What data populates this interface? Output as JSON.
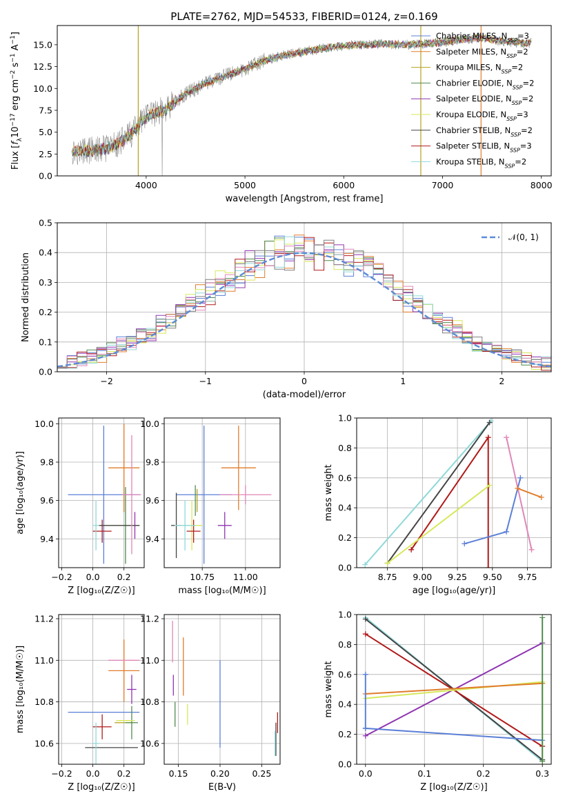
{
  "colors": {
    "cm": "#5a7fd6",
    "sm": "#e07b2a",
    "km": "#b5a11f",
    "ce": "#4f8a4f",
    "se": "#8e34b0",
    "ke": "#d6e85a",
    "cs": "#444444",
    "ss": "#b01818",
    "ks": "#8fd8d8",
    "pink": "#e086b8",
    "gray": "#7f7f7f",
    "normal": "#5b8bd6"
  },
  "chart_data": [
    {
      "id": "spectrum",
      "type": "line",
      "title": "PLATE=2762, MJD=54533, FIBERID=0124, z=0.169",
      "xlabel": "wavelength [Angstrom, rest frame]",
      "ylabel_parts": [
        "Flux [",
        "f",
        "λ",
        "10",
        "−17",
        " erg cm",
        "−2",
        " s",
        "−1",
        " A",
        "−1",
        "]"
      ],
      "xlim": [
        3100,
        8100
      ],
      "ylim": [
        0,
        17.2
      ],
      "xticks": [
        4000,
        5000,
        6000,
        7000,
        8000
      ],
      "yticks": [
        0.0,
        2.5,
        5.0,
        7.5,
        10.0,
        12.5,
        15.0
      ],
      "ytick_labels": [
        "0.0",
        "2.5",
        "5.0",
        "7.5",
        "10.0",
        "12.5",
        "15.0"
      ],
      "grid": false,
      "legend_position": "top-right",
      "continuum": {
        "x": [
          3250,
          3450,
          3600,
          3750,
          3850,
          3950,
          4050,
          4200,
          4400,
          4600,
          4800,
          5000,
          5200,
          5400,
          5600,
          5800,
          6000,
          6200,
          6400,
          6600,
          6800,
          7000,
          7200,
          7400,
          7600,
          7800
        ],
        "y": [
          2.8,
          2.9,
          3.1,
          4.0,
          4.8,
          6.2,
          7.0,
          7.6,
          9.4,
          10.6,
          11.4,
          12.2,
          13.2,
          13.8,
          14.2,
          14.6,
          14.9,
          15.0,
          15.1,
          15.0,
          15.1,
          15.3,
          15.6,
          15.8,
          15.4,
          15.2
        ]
      },
      "legend": [
        {
          "base": "Chabrier MILES, N",
          "sub": "SSP",
          "tail": "=3",
          "color": "cm"
        },
        {
          "base": "Salpeter MILES, N",
          "sub": "SSP",
          "tail": "=2",
          "color": "sm"
        },
        {
          "base": "Kroupa MILES, N",
          "sub": "SSP",
          "tail": "=2",
          "color": "km"
        },
        {
          "base": "Chabrier ELODIE, N",
          "sub": "SSP",
          "tail": "=2",
          "color": "ce"
        },
        {
          "base": "Salpeter ELODIE, N",
          "sub": "SSP",
          "tail": "=2",
          "color": "se"
        },
        {
          "base": "Kroupa ELODIE, N",
          "sub": "SSP",
          "tail": "=3",
          "color": "ke"
        },
        {
          "base": "Chabrier STELIB, N",
          "sub": "SSP",
          "tail": "=2",
          "color": "cs"
        },
        {
          "base": "Salpeter STELIB, N",
          "sub": "SSP",
          "tail": "=3",
          "color": "ss"
        },
        {
          "base": "Kroupa STELIB, N",
          "sub": "SSP",
          "tail": "=2",
          "color": "ks"
        }
      ],
      "vlines": [
        {
          "x": 3920,
          "color": "km"
        },
        {
          "x": 6780,
          "color": "km"
        },
        {
          "x": 7390,
          "color": "sm"
        }
      ]
    },
    {
      "id": "residuals",
      "type": "area",
      "xlabel": "(data-model)/error",
      "ylabel": "Normed distribution",
      "xlim": [
        -2.5,
        2.5
      ],
      "ylim": [
        0,
        0.5
      ],
      "xticks": [
        -2,
        -1,
        0,
        1,
        2
      ],
      "xtick_labels": [
        "−2",
        "−1",
        "0",
        "1",
        "2"
      ],
      "yticks": [
        0.0,
        0.1,
        0.2,
        0.3,
        0.4,
        0.5
      ],
      "ytick_labels": [
        "0.0",
        "0.1",
        "0.2",
        "0.3",
        "0.4",
        "0.5"
      ],
      "grid": true,
      "legend_position": "top-right",
      "normal_legend": "𝒩(0, 1)",
      "bin_width": 0.1,
      "n_bins": 50
    },
    {
      "id": "age_vs_Z",
      "type": "scatter",
      "xlabel": "Z [log₁₀(Z/Z☉)]",
      "ylabel": "age  [log₁₀(age/yr)]",
      "xlim": [
        -0.22,
        0.33
      ],
      "ylim": [
        9.25,
        10.03
      ],
      "xticks": [
        -0.2,
        0.0,
        0.2
      ],
      "xtick_labels": [
        "−0.2",
        "0.0",
        "0.2"
      ],
      "yticks": [
        9.4,
        9.6,
        9.8,
        10.0
      ],
      "ytick_labels": [
        "9.4",
        "9.6",
        "9.8",
        "10.0"
      ],
      "grid": true,
      "points": [
        {
          "x": 0.07,
          "xerr": 0.23,
          "y": 9.63,
          "yerr": 0.36,
          "color": "cm"
        },
        {
          "x": 0.2,
          "xerr": 0.1,
          "y": 9.77,
          "yerr": 0.23,
          "color": "sm"
        },
        {
          "x": 0.2,
          "xerr": 0.0,
          "y": 9.47,
          "yerr": 0.0,
          "color": "km"
        },
        {
          "x": 0.21,
          "xerr": 0.09,
          "y": 9.47,
          "yerr": 0.2,
          "color": "ce"
        },
        {
          "x": 0.27,
          "xerr": 0.03,
          "y": 9.47,
          "yerr": 0.07,
          "color": "se"
        },
        {
          "x": 0.18,
          "xerr": 0.12,
          "y": 9.47,
          "yerr": 0.0,
          "color": "ke"
        },
        {
          "x": 0.17,
          "xerr": 0.13,
          "y": 9.47,
          "yerr": 0.0,
          "color": "cs"
        },
        {
          "x": 0.06,
          "xerr": 0.06,
          "y": 9.44,
          "yerr": 0.06,
          "color": "ss"
        },
        {
          "x": 0.02,
          "xerr": 0.02,
          "y": 9.47,
          "yerr": 0.13,
          "color": "ks"
        },
        {
          "x": 0.25,
          "xerr": 0.06,
          "y": 9.63,
          "yerr": 0.31,
          "color": "pink"
        }
      ]
    },
    {
      "id": "age_vs_mass",
      "type": "scatter",
      "xlabel": "mass [log₁₀(M/M☉)]",
      "ylabel": "",
      "xlim": [
        10.53,
        11.2
      ],
      "ylim": [
        9.25,
        10.03
      ],
      "xticks": [
        10.5,
        10.75,
        11.0
      ],
      "xtick_labels": [
        "10.50",
        "10.75",
        "11.00"
      ],
      "yticks": [
        9.4,
        9.6,
        9.8,
        10.0
      ],
      "ytick_labels": [
        "9.4",
        "9.6",
        "9.8",
        "10.0"
      ],
      "grid": true,
      "points": [
        {
          "x": 10.76,
          "xerr": 0.16,
          "y": 9.63,
          "yerr": 0.36,
          "color": "cm"
        },
        {
          "x": 10.96,
          "xerr": 0.1,
          "y": 9.77,
          "yerr": 0.22,
          "color": "sm"
        },
        {
          "x": 10.72,
          "xerr": 0.0,
          "y": 9.6,
          "yerr": 0.06,
          "color": "km"
        },
        {
          "x": 10.71,
          "xerr": 0.0,
          "y": 9.6,
          "yerr": 0.08,
          "color": "ce"
        },
        {
          "x": 10.88,
          "xerr": 0.04,
          "y": 9.47,
          "yerr": 0.07,
          "color": "se"
        },
        {
          "x": 10.69,
          "xerr": 0.06,
          "y": 9.47,
          "yerr": 0.13,
          "color": "ke"
        },
        {
          "x": 10.6,
          "xerr": 0.03,
          "y": 9.47,
          "yerr": 0.17,
          "color": "cs"
        },
        {
          "x": 10.7,
          "xerr": 0.04,
          "y": 9.44,
          "yerr": 0.06,
          "color": "ss"
        },
        {
          "x": 10.65,
          "xerr": 0.06,
          "y": 9.47,
          "yerr": 0.13,
          "color": "ks"
        },
        {
          "x": 11.0,
          "xerr": 0.15,
          "y": 9.63,
          "yerr": 0.05,
          "color": "pink"
        }
      ]
    },
    {
      "id": "weight_vs_age",
      "type": "line",
      "xlabel": "age  [log₁₀(age/yr)]",
      "ylabel": "mass weight",
      "xlim": [
        8.53,
        9.92
      ],
      "ylim": [
        0,
        1
      ],
      "xticks": [
        8.75,
        9.0,
        9.25,
        9.5,
        9.75
      ],
      "xtick_labels": [
        "8.75",
        "9.00",
        "9.25",
        "9.50",
        "9.75"
      ],
      "yticks": [
        0.0,
        0.2,
        0.4,
        0.6,
        0.8,
        1.0
      ],
      "ytick_labels": [
        "0.0",
        "0.2",
        "0.4",
        "0.6",
        "0.8",
        "1.0"
      ],
      "grid": true,
      "series": [
        {
          "color": "ks",
          "x": [
            8.59,
            9.49
          ],
          "y": [
            0.02,
            0.98
          ]
        },
        {
          "color": "cs",
          "x": [
            8.75,
            9.48
          ],
          "y": [
            0.03,
            0.97
          ]
        },
        {
          "color": "ss",
          "x": [
            8.92,
            9.47,
            9.47
          ],
          "y": [
            0.12,
            0.87,
            0.0
          ]
        },
        {
          "color": "ke",
          "x": [
            8.75,
            9.48
          ],
          "y": [
            0.03,
            0.55
          ]
        },
        {
          "color": "cm",
          "x": [
            9.3,
            9.6,
            9.7
          ],
          "y": [
            0.16,
            0.24,
            0.6
          ]
        },
        {
          "color": "pink",
          "x": [
            9.6,
            9.78
          ],
          "y": [
            0.87,
            0.12
          ]
        },
        {
          "color": "sm",
          "x": [
            9.68,
            9.85
          ],
          "y": [
            0.53,
            0.47
          ]
        }
      ]
    },
    {
      "id": "mass_vs_Z",
      "type": "scatter",
      "xlabel": "Z [log₁₀(Z/Z☉)]",
      "ylabel": "mass [log₁₀(M/M☉)]",
      "xlim": [
        -0.22,
        0.33
      ],
      "ylim": [
        10.5,
        11.22
      ],
      "xticks": [
        -0.2,
        0.0,
        0.2
      ],
      "xtick_labels": [
        "−0.2",
        "0.0",
        "0.2"
      ],
      "yticks": [
        10.6,
        10.8,
        11.0,
        11.2
      ],
      "ytick_labels": [
        "10.6",
        "10.8",
        "11.0",
        "11.2"
      ],
      "grid": true,
      "points": [
        {
          "x": 0.07,
          "xerr": 0.23,
          "y": 10.75,
          "yerr": 0.0,
          "color": "cm"
        },
        {
          "x": 0.2,
          "xerr": 0.1,
          "y": 10.95,
          "yerr": 0.15,
          "color": "sm"
        },
        {
          "x": 0.2,
          "xerr": 0.06,
          "y": 10.7,
          "yerr": 0.0,
          "color": "km"
        },
        {
          "x": 0.25,
          "xerr": 0.04,
          "y": 10.7,
          "yerr": 0.08,
          "color": "ce"
        },
        {
          "x": 0.25,
          "xerr": 0.03,
          "y": 10.86,
          "yerr": 0.07,
          "color": "se"
        },
        {
          "x": 0.21,
          "xerr": 0.06,
          "y": 10.71,
          "yerr": 0.0,
          "color": "ke"
        },
        {
          "x": 0.12,
          "xerr": 0.17,
          "y": 10.58,
          "yerr": 0.0,
          "color": "cs"
        },
        {
          "x": 0.06,
          "xerr": 0.06,
          "y": 10.68,
          "yerr": 0.06,
          "color": "ss"
        },
        {
          "x": 0.02,
          "xerr": 0.02,
          "y": 10.6,
          "yerr": 0.1,
          "color": "ks"
        },
        {
          "x": 0.2,
          "xerr": 0.1,
          "y": 11.0,
          "yerr": 0.0,
          "color": "pink"
        }
      ]
    },
    {
      "id": "mass_vs_ebv",
      "type": "scatter",
      "xlabel": "E(B-V)",
      "ylabel": "",
      "xlim": [
        0.133,
        0.272
      ],
      "ylim": [
        10.5,
        11.22
      ],
      "xticks": [
        0.15,
        0.2,
        0.25
      ],
      "xtick_labels": [
        "0.15",
        "0.20",
        "0.25"
      ],
      "yticks": [
        10.6,
        10.8,
        11.0,
        11.2
      ],
      "ytick_labels": [
        "10.6",
        "10.8",
        "11.0",
        "11.2"
      ],
      "grid": true,
      "points": [
        {
          "x": 0.2,
          "xerr": 0.0,
          "y": 10.79,
          "yerr": 0.21,
          "color": "cm"
        },
        {
          "x": 0.156,
          "xerr": 0.0,
          "y": 10.97,
          "yerr": 0.14,
          "color": "sm"
        },
        {
          "x": 0.146,
          "xerr": 0.0,
          "y": 10.74,
          "yerr": 0.06,
          "color": "ce"
        },
        {
          "x": 0.144,
          "xerr": 0.0,
          "y": 10.88,
          "yerr": 0.05,
          "color": "se"
        },
        {
          "x": 0.161,
          "xerr": 0.0,
          "y": 10.74,
          "yerr": 0.05,
          "color": "ke"
        },
        {
          "x": 0.267,
          "xerr": 0.0,
          "y": 10.62,
          "yerr": 0.08,
          "color": "cs"
        },
        {
          "x": 0.269,
          "xerr": 0.0,
          "y": 10.7,
          "yerr": 0.05,
          "color": "ss"
        },
        {
          "x": 0.266,
          "xerr": 0.0,
          "y": 10.6,
          "yerr": 0.06,
          "color": "ks"
        },
        {
          "x": 0.143,
          "xerr": 0.0,
          "y": 11.09,
          "yerr": 0.1,
          "color": "pink"
        }
      ]
    },
    {
      "id": "weight_vs_Z",
      "type": "line",
      "xlabel": "Z [log₁₀(Z/Z☉)]",
      "ylabel": "mass weight",
      "xlim": [
        -0.015,
        0.315
      ],
      "ylim": [
        0,
        1
      ],
      "xticks": [
        0.0,
        0.1,
        0.2,
        0.3
      ],
      "xtick_labels": [
        "0.0",
        "0.1",
        "0.2",
        "0.3"
      ],
      "yticks": [
        0.0,
        0.2,
        0.4,
        0.6,
        0.8,
        1.0
      ],
      "ytick_labels": [
        "0.0",
        "0.2",
        "0.4",
        "0.6",
        "0.8",
        "1.0"
      ],
      "grid": true,
      "series": [
        {
          "color": "ks",
          "x": [
            0.0,
            0.3
          ],
          "y": [
            0.98,
            0.02
          ]
        },
        {
          "color": "cs",
          "x": [
            0.0,
            0.3
          ],
          "y": [
            0.97,
            0.03
          ]
        },
        {
          "color": "ss",
          "x": [
            0.0,
            0.3
          ],
          "y": [
            0.87,
            0.12
          ]
        },
        {
          "color": "se",
          "x": [
            0.0,
            0.3
          ],
          "y": [
            0.19,
            0.81
          ]
        },
        {
          "color": "ke",
          "x": [
            0.0,
            0.3,
            0.3
          ],
          "y": [
            0.44,
            0.55,
            0.02
          ]
        },
        {
          "color": "sm",
          "x": [
            0.0,
            0.3
          ],
          "y": [
            0.47,
            0.54
          ]
        },
        {
          "color": "cm",
          "x": [
            0.0,
            0.0,
            0.0,
            0.3
          ],
          "y": [
            0.6,
            0.24,
            0.24,
            0.16
          ]
        },
        {
          "color": "ce",
          "x": [
            0.3,
            0.3
          ],
          "y": [
            0.98,
            0.02
          ]
        }
      ]
    }
  ]
}
